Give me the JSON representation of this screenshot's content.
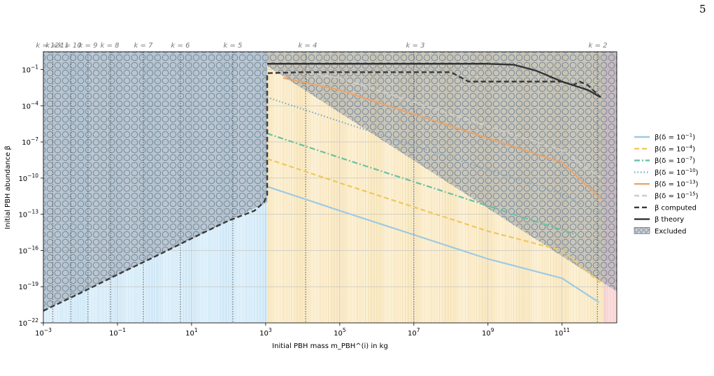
{
  "page_number": "5",
  "chart_data": {
    "type": "line",
    "xlabel": "Initial PBH mass m_PBH^(i) in kg",
    "ylabel": "Initial PBH abundance β",
    "x_scale": "log",
    "y_scale": "log",
    "xlim": [
      0.001,
      3000000000000.0
    ],
    "ylim": [
      1e-22,
      3
    ],
    "grid": true,
    "x_ticks": [
      {
        "value": 0.001,
        "label": "10^-3"
      },
      {
        "value": 0.1,
        "label": "10^-1"
      },
      {
        "value": 10,
        "label": "10^1"
      },
      {
        "value": 1000,
        "label": "10^3"
      },
      {
        "value": 100000,
        "label": "10^5"
      },
      {
        "value": 10000000,
        "label": "10^7"
      },
      {
        "value": 1000000000,
        "label": "10^9"
      },
      {
        "value": 100000000000,
        "label": "10^11"
      }
    ],
    "y_ticks": [
      {
        "value": 0.1,
        "label": "10^-1"
      },
      {
        "value": 0.0001,
        "label": "10^-4"
      },
      {
        "value": 1e-07,
        "label": "10^-7"
      },
      {
        "value": 1e-10,
        "label": "10^-10"
      },
      {
        "value": 1e-13,
        "label": "10^-13"
      },
      {
        "value": 1e-16,
        "label": "10^-16"
      },
      {
        "value": 1e-19,
        "label": "10^-19"
      },
      {
        "value": 1e-22,
        "label": "10^-22"
      }
    ],
    "k_markers": [
      {
        "label": "k = 12",
        "mass": 0.0018
      },
      {
        "label": "k = 11",
        "mass": 0.0055
      },
      {
        "label": "k = 10",
        "mass": 0.016
      },
      {
        "label": "k = 9",
        "mass": 0.065
      },
      {
        "label": "k = 8",
        "mass": 0.5
      },
      {
        "label": "k = 7",
        "mass": 5
      },
      {
        "label": "k = 6",
        "mass": 130
      },
      {
        "label": "k = 5",
        "mass": 0
      },
      {
        "label": "k = 4",
        "mass": 12000
      },
      {
        "label": "k = 3",
        "mass": 10000000
      },
      {
        "label": "k = 2",
        "mass": 900000000000
      }
    ],
    "regions": [
      {
        "name": "blue-region",
        "x_start": 0.001,
        "x_end": 1100,
        "color": "#e0f1fb"
      },
      {
        "name": "yellow-region",
        "x_start": 1100,
        "x_end": 1300000000000.0,
        "color": "#fcf0d5"
      },
      {
        "name": "red-region",
        "x_start": 1300000000000.0,
        "x_end": 3000000000000.0,
        "color": "#fbdcdc"
      }
    ],
    "excluded": [
      {
        "x": [
          0.001,
          0.001,
          1100,
          1100
        ],
        "y": [
          1e-21,
          3,
          3,
          1e-12
        ]
      },
      {
        "x": [
          1100,
          1100,
          3000000000000.0,
          3000000000000.0
        ],
        "y": [
          0.2,
          3,
          3,
          4e-20
        ]
      }
    ],
    "series": [
      {
        "name": "β(δ = 10^-1)",
        "color": "#9ecae1",
        "dash": "solid",
        "x": [
          1100,
          100000.0,
          10000000.0,
          1000000000.0,
          100000000000.0,
          1000000000000.0
        ],
        "y": [
          2e-11,
          2e-13,
          2e-15,
          2e-17,
          5e-19,
          5e-21
        ]
      },
      {
        "name": "β(δ = 10^-4)",
        "color": "#f0c75e",
        "dash": "dashed",
        "x": [
          1100,
          100000.0,
          10000000.0,
          1000000000.0,
          100000000000.0,
          1100000000000.0
        ],
        "y": [
          4e-09,
          4e-11,
          4e-13,
          4e-15,
          1e-16,
          2e-19
        ]
      },
      {
        "name": "β(δ = 10^-7)",
        "color": "#66c2a5",
        "dash": "dashdot",
        "x": [
          1100,
          100000.0,
          10000000.0,
          1000000000.0,
          100000000000.0,
          250000000000.0
        ],
        "y": [
          5e-07,
          5e-09,
          5e-11,
          5e-13,
          5e-15,
          2e-15
        ]
      },
      {
        "name": "β(δ = 10^-10)",
        "color": "#7fa8c0",
        "dash": "dotted",
        "x": [
          1100,
          100000.0,
          10000000.0,
          1000000000.0,
          100000000000.0,
          1100000000000.0
        ],
        "y": [
          0.0005,
          5e-06,
          5e-08,
          5e-10,
          5e-12,
          1e-13
        ]
      },
      {
        "name": "β(δ = 10^-13)",
        "color": "#e8a56e",
        "dash": "solid",
        "x": [
          3000,
          100000.0,
          10000000.0,
          1000000000.0,
          100000000000.0,
          1100000000000.0
        ],
        "y": [
          0.02,
          0.002,
          2e-05,
          2e-07,
          2e-09,
          2e-12
        ]
      },
      {
        "name": "β(δ = 10^-15)",
        "color": "#cccccc",
        "dash": "dashed",
        "x": [
          15000,
          100000.0,
          10000000.0,
          1000000000.0,
          100000000000.0,
          1100000000000.0
        ],
        "y": [
          0.05,
          0.02,
          0.0002,
          2e-06,
          2e-08,
          1e-10
        ]
      },
      {
        "name": "β computed",
        "color": "#3a3a3a",
        "dash": "dashed",
        "x": [
          0.001,
          0.01,
          0.1,
          1,
          10,
          100,
          500,
          900,
          1100,
          1100,
          10000.0,
          1000000.0,
          100000000.0,
          300000000.0,
          3000000000.0,
          8000000000.0,
          10000000000.0,
          100000000000.0,
          200000000000.0,
          300000000000.0,
          500000000000.0,
          1100000000000.0
        ],
        "y": [
          1e-21,
          3e-20,
          1e-18,
          3e-17,
          1e-15,
          3e-14,
          2e-13,
          1e-12,
          4e-12,
          0.05,
          0.06,
          0.06,
          0.06,
          0.01,
          0.01,
          0.01,
          0.01,
          0.01,
          0.005,
          0.01,
          0.005,
          0.0005
        ]
      },
      {
        "name": "β theory",
        "color": "#333333",
        "dash": "solid",
        "x": [
          1100,
          1000000.0,
          1000000000.0,
          5000000000.0,
          20000000000.0,
          100000000000.0,
          500000000000.0,
          1100000000000.0
        ],
        "y": [
          0.3,
          0.3,
          0.3,
          0.25,
          0.08,
          0.01,
          0.002,
          0.0005
        ]
      }
    ],
    "legend": {
      "placement": "right",
      "entries": [
        {
          "label": "β(δ = 10^-1)",
          "color": "#9ecae1",
          "dash": "solid"
        },
        {
          "label": "β(δ = 10^-4)",
          "color": "#f0c75e",
          "dash": "dashed"
        },
        {
          "label": "β(δ = 10^-7)",
          "color": "#66c2a5",
          "dash": "dashdot"
        },
        {
          "label": "β(δ = 10^-10)",
          "color": "#7fa8c0",
          "dash": "dotted"
        },
        {
          "label": "β(δ = 10^-13)",
          "color": "#e8a56e",
          "dash": "solid"
        },
        {
          "label": "β(δ = 10^-15)",
          "color": "#cccccc",
          "dash": "dashed"
        },
        {
          "label": "β computed",
          "color": "#3a3a3a",
          "dash": "dashed"
        },
        {
          "label": "β theory",
          "color": "#333333",
          "dash": "solid"
        },
        {
          "label": "Excluded",
          "color": "#8a9aa8",
          "dash": "hatch"
        }
      ]
    }
  }
}
